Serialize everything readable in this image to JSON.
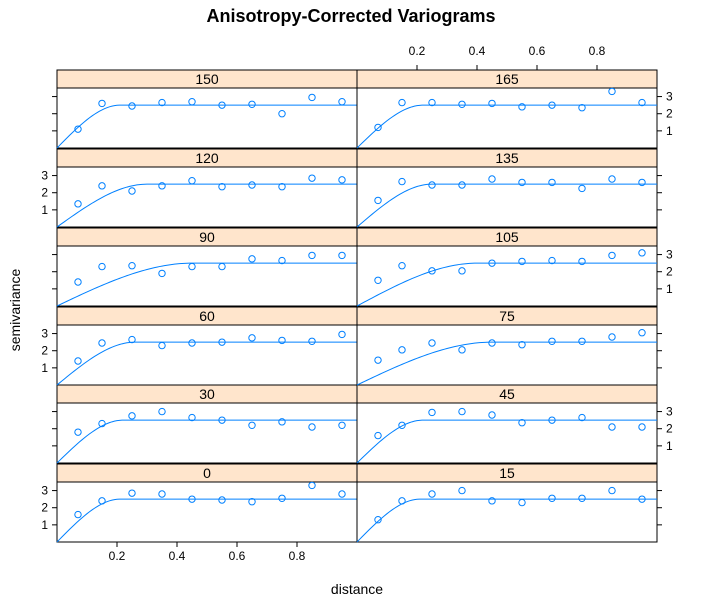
{
  "chart_data": {
    "type": "scatter",
    "title": "Anisotropy-Corrected Variograms",
    "xlabel": "distance",
    "ylabel": "semivariance",
    "xlim": [
      0,
      1.0
    ],
    "ylim": [
      0,
      3.5
    ],
    "x_ticks": [
      0.2,
      0.4,
      0.6,
      0.8
    ],
    "y_ticks": [
      1,
      2,
      3
    ],
    "x": [
      0.07,
      0.15,
      0.25,
      0.35,
      0.45,
      0.55,
      0.65,
      0.75,
      0.85,
      0.95
    ],
    "model": {
      "type": "spherical",
      "nugget": 0,
      "sill": 2.5
    },
    "panels": [
      {
        "label": "0",
        "range": 0.21,
        "values": [
          1.6,
          2.4,
          2.85,
          2.8,
          2.5,
          2.45,
          2.35,
          2.55,
          3.3,
          2.8
        ]
      },
      {
        "label": "15",
        "range": 0.21,
        "values": [
          1.3,
          2.4,
          2.8,
          3.0,
          2.4,
          2.3,
          2.55,
          2.55,
          3.0,
          2.5
        ]
      },
      {
        "label": "30",
        "range": 0.22,
        "values": [
          1.8,
          2.3,
          2.75,
          3.0,
          2.65,
          2.5,
          2.2,
          2.4,
          2.1,
          2.2
        ]
      },
      {
        "label": "45",
        "range": 0.22,
        "values": [
          1.6,
          2.2,
          2.95,
          3.0,
          2.8,
          2.35,
          2.5,
          2.65,
          2.1,
          2.1
        ]
      },
      {
        "label": "60",
        "range": 0.26,
        "values": [
          1.4,
          2.45,
          2.65,
          2.3,
          2.45,
          2.5,
          2.75,
          2.6,
          2.55,
          2.95
        ]
      },
      {
        "label": "75",
        "range": 0.45,
        "values": [
          1.45,
          2.05,
          2.45,
          2.05,
          2.45,
          2.35,
          2.55,
          2.55,
          2.8,
          3.05
        ]
      },
      {
        "label": "90",
        "range": 0.45,
        "values": [
          1.4,
          2.3,
          2.35,
          1.9,
          2.3,
          2.3,
          2.75,
          2.65,
          2.95,
          2.95
        ]
      },
      {
        "label": "105",
        "range": 0.4,
        "values": [
          1.5,
          2.35,
          2.05,
          2.05,
          2.5,
          2.6,
          2.65,
          2.6,
          2.95,
          3.1
        ]
      },
      {
        "label": "120",
        "range": 0.3,
        "values": [
          1.35,
          2.4,
          2.1,
          2.4,
          2.7,
          2.35,
          2.45,
          2.35,
          2.85,
          2.75
        ]
      },
      {
        "label": "135",
        "range": 0.25,
        "values": [
          1.55,
          2.65,
          2.45,
          2.45,
          2.8,
          2.6,
          2.6,
          2.25,
          2.8,
          2.6
        ]
      },
      {
        "label": "150",
        "range": 0.21,
        "values": [
          1.1,
          2.6,
          2.45,
          2.65,
          2.7,
          2.5,
          2.55,
          2.0,
          2.95,
          2.7
        ]
      },
      {
        "label": "165",
        "range": 0.22,
        "values": [
          1.2,
          2.65,
          2.65,
          2.55,
          2.6,
          2.4,
          2.5,
          2.35,
          3.3,
          2.65
        ]
      }
    ],
    "grid": false,
    "legend": "none",
    "colors": {
      "points": "#0080ff",
      "line": "#0080ff",
      "strip": "#ffe5cc"
    }
  }
}
